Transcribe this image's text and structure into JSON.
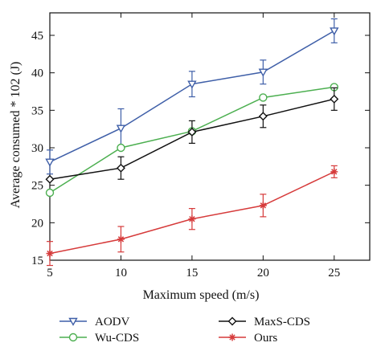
{
  "chart_data": {
    "type": "line",
    "x": [
      5,
      10,
      15,
      20,
      25
    ],
    "xlim": [
      5,
      27.5
    ],
    "ylim": [
      15,
      48
    ],
    "xticks": [
      5,
      10,
      15,
      20,
      25
    ],
    "yticks": [
      15,
      20,
      25,
      30,
      35,
      40,
      45
    ],
    "xlabel": "Maximum speed (m/s)",
    "ylabel": "Average consumed * 102 (J)",
    "grid": false,
    "legend_position": "below",
    "series": [
      {
        "name": "AODV",
        "marker": "triangle-down",
        "color": "#3f5fa8",
        "values": [
          28.1,
          32.6,
          38.5,
          40.1,
          45.6
        ],
        "err": [
          1.6,
          2.6,
          1.7,
          1.6,
          1.6
        ]
      },
      {
        "name": "Wu-CDS",
        "marker": "circle",
        "color": "#4caf50",
        "values": [
          24.0,
          30.0,
          32.2,
          36.7,
          38.1
        ],
        "err": [
          0,
          0,
          0,
          0,
          0
        ]
      },
      {
        "name": "MaxS-CDS",
        "marker": "diamond",
        "color": "#111111",
        "values": [
          25.8,
          27.3,
          32.1,
          34.2,
          36.5
        ],
        "err": [
          0,
          1.5,
          1.5,
          1.5,
          1.5
        ]
      },
      {
        "name": "Ours",
        "marker": "asterisk",
        "color": "#d63a3a",
        "values": [
          15.9,
          17.8,
          20.5,
          22.3,
          26.8
        ],
        "err": [
          1.6,
          1.7,
          1.4,
          1.5,
          0.8
        ]
      }
    ]
  }
}
